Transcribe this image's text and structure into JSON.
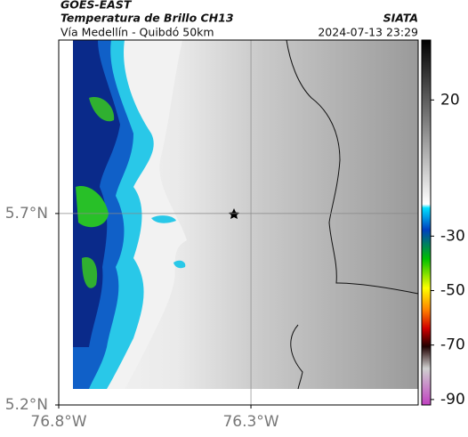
{
  "header": {
    "satellite": "GOES-EAST",
    "product": "Temperatura de Brillo CH13",
    "agency": "SIATA",
    "route": "Vía Medellín - Quibdó 50km",
    "timestamp": "2024-07-13 23:29"
  },
  "map": {
    "xlim": [
      -76.8,
      -75.865
    ],
    "ylim": [
      5.2,
      6.153
    ],
    "lon_ticks": [
      {
        "value": -76.8,
        "label": "76.8°W"
      },
      {
        "value": -76.3,
        "label": "76.3°W"
      }
    ],
    "lat_ticks": [
      {
        "value": 5.2,
        "label": "5.2°N"
      },
      {
        "value": 5.7,
        "label": "5.7°N"
      }
    ],
    "grid": true
  },
  "colorbar": {
    "lim": [
      -92,
      42
    ],
    "ticks": [
      20,
      -30,
      -50,
      -70,
      -90
    ]
  }
}
